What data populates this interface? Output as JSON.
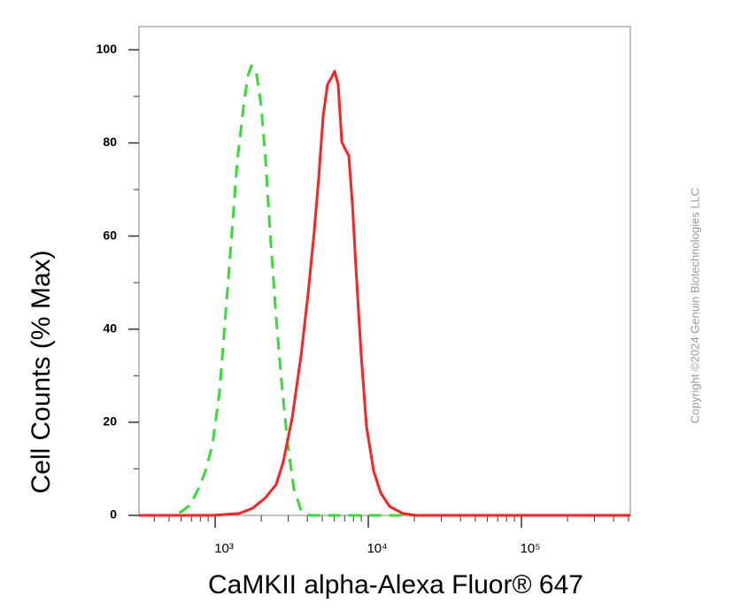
{
  "chart_data": {
    "type": "line",
    "y_label": "Cell Counts (% Max)",
    "x_label": "CaMKII alpha-Alexa Fluor® 647",
    "watermark": "Copyright ©2024 Genuin Biotechnologies LLC",
    "xscale": "log",
    "xlim": [
      318,
      514000
    ],
    "ylim": [
      0,
      105
    ],
    "xticks": [
      {
        "value": 1000,
        "label": "10³"
      },
      {
        "value": 10000,
        "label": "10⁴"
      },
      {
        "value": 100000,
        "label": "10⁵"
      }
    ],
    "yticks": [
      0,
      20,
      40,
      60,
      80,
      100
    ],
    "series": [
      {
        "color": "#33dd33",
        "dash": true,
        "x": [
          318,
          528,
          603,
          689,
          787,
          864,
          961,
          1069,
          1173,
          1288,
          1395,
          1531,
          1637,
          1726,
          1870,
          2000,
          2135,
          2282,
          2506,
          2714,
          2978,
          3268,
          3637,
          4150,
          514000
        ],
        "values": [
          0,
          0,
          0.8,
          2.3,
          6.1,
          9.5,
          15.3,
          26.7,
          43.9,
          61.1,
          76.3,
          87.8,
          94.5,
          96.6,
          94.5,
          87.8,
          76.3,
          61.1,
          42.0,
          28.6,
          15.3,
          5.7,
          1.0,
          0,
          0
        ]
      },
      {
        "color": "#ff2020",
        "dash": false,
        "x": [
          318,
          961,
          1432,
          1749,
          2135,
          2506,
          2786,
          3184,
          3637,
          4045,
          4436,
          4745,
          5075,
          5420,
          5715,
          6030,
          6355,
          6710,
          7080,
          7460,
          7870,
          8300,
          8990,
          9730,
          10840,
          12050,
          13770,
          16790,
          20510,
          514000
        ],
        "values": [
          0,
          0,
          0.4,
          1.5,
          3.8,
          6.7,
          11.5,
          21.0,
          34.4,
          47.7,
          61.1,
          72.5,
          85.9,
          92.6,
          93.9,
          95.4,
          92.6,
          80.2,
          78.6,
          77.3,
          66.8,
          53.4,
          34.4,
          19.1,
          9.5,
          4.8,
          1.9,
          0.4,
          0,
          0
        ]
      }
    ]
  }
}
